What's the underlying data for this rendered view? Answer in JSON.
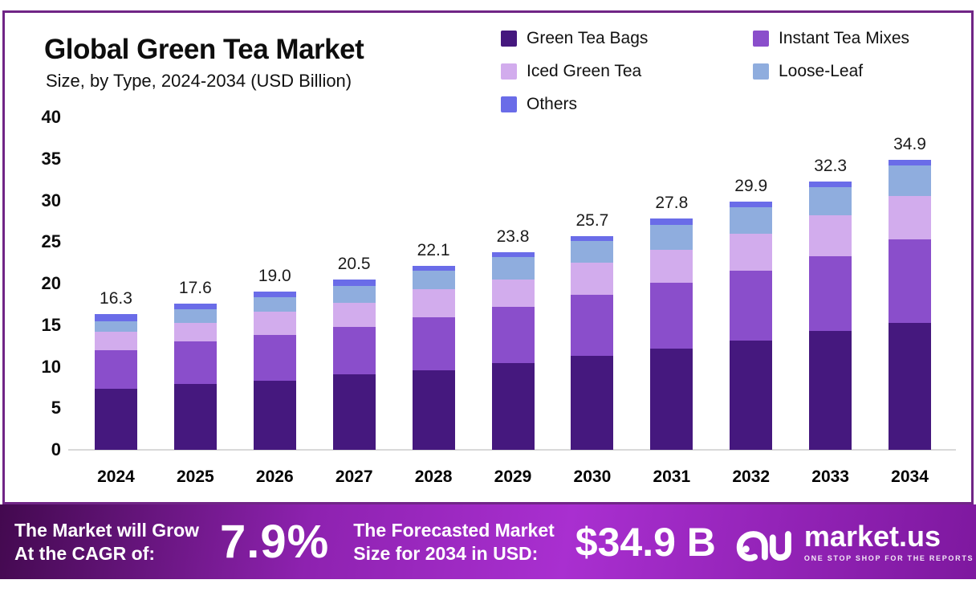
{
  "header": {
    "title": "Global Green Tea Market",
    "subtitle": "Size, by Type, 2024-2034 (USD Billion)"
  },
  "legend": {
    "items": [
      {
        "label": "Green Tea Bags",
        "color": "#45187e"
      },
      {
        "label": "Iced Green Tea",
        "color": "#d2aced"
      },
      {
        "label": "Others",
        "color": "#6a6ce8"
      },
      {
        "label": "Instant Tea Mixes",
        "color": "#8a4ecb"
      },
      {
        "label": "Loose-Leaf",
        "color": "#8fadde"
      }
    ]
  },
  "chart_data": {
    "type": "bar",
    "stacked": true,
    "title": "Global Green Tea Market Size, by Type, 2024-2034 (USD Billion)",
    "categories": [
      "2024",
      "2025",
      "2026",
      "2027",
      "2028",
      "2029",
      "2030",
      "2031",
      "2032",
      "2033",
      "2034"
    ],
    "series": [
      {
        "name": "Green Tea Bags",
        "color": "#45187e",
        "values": [
          7.3,
          7.9,
          8.3,
          9.1,
          9.6,
          10.4,
          11.3,
          12.2,
          13.1,
          14.3,
          15.3
        ]
      },
      {
        "name": "Instant Tea Mixes",
        "color": "#8a4ecb",
        "values": [
          4.7,
          5.1,
          5.5,
          5.7,
          6.3,
          6.8,
          7.3,
          7.9,
          8.4,
          9.0,
          10.0
        ]
      },
      {
        "name": "Iced Green Tea",
        "color": "#d2aced",
        "values": [
          2.2,
          2.3,
          2.8,
          2.9,
          3.4,
          3.3,
          3.9,
          4.0,
          4.5,
          4.9,
          5.2
        ]
      },
      {
        "name": "Loose-Leaf",
        "color": "#8fadde",
        "values": [
          1.3,
          1.6,
          1.8,
          2.0,
          2.2,
          2.7,
          2.6,
          3.0,
          3.2,
          3.4,
          3.7
        ]
      },
      {
        "name": "Others",
        "color": "#6a6ce8",
        "values": [
          0.8,
          0.7,
          0.6,
          0.8,
          0.6,
          0.6,
          0.6,
          0.7,
          0.7,
          0.7,
          0.7
        ]
      }
    ],
    "totals": [
      16.3,
      17.6,
      19.0,
      20.5,
      22.1,
      23.8,
      25.7,
      27.8,
      29.9,
      32.3,
      34.9
    ],
    "xlabel": "",
    "ylabel": "",
    "ylim": [
      0,
      40
    ],
    "ytick_step": 5,
    "grid": false,
    "legend_position": "top-right"
  },
  "banner": {
    "cagr_label_line1": "The Market will Grow",
    "cagr_label_line2": "At the CAGR of:",
    "cagr_value": "7.9%",
    "forecast_label_line1": "The Forecasted Market",
    "forecast_label_line2": "Size for 2034 in USD:",
    "forecast_value": "$34.9 B",
    "brand": {
      "name": "market.us",
      "tagline": "ONE STOP SHOP FOR THE REPORTS"
    }
  },
  "colors": {
    "card_border": "#702586",
    "axis_baseline": "#d9d9d9",
    "banner_gradient": [
      "#43094f",
      "#8e22b0",
      "#a92fd0",
      "#7e189f"
    ],
    "text": "#0d0d0d"
  }
}
